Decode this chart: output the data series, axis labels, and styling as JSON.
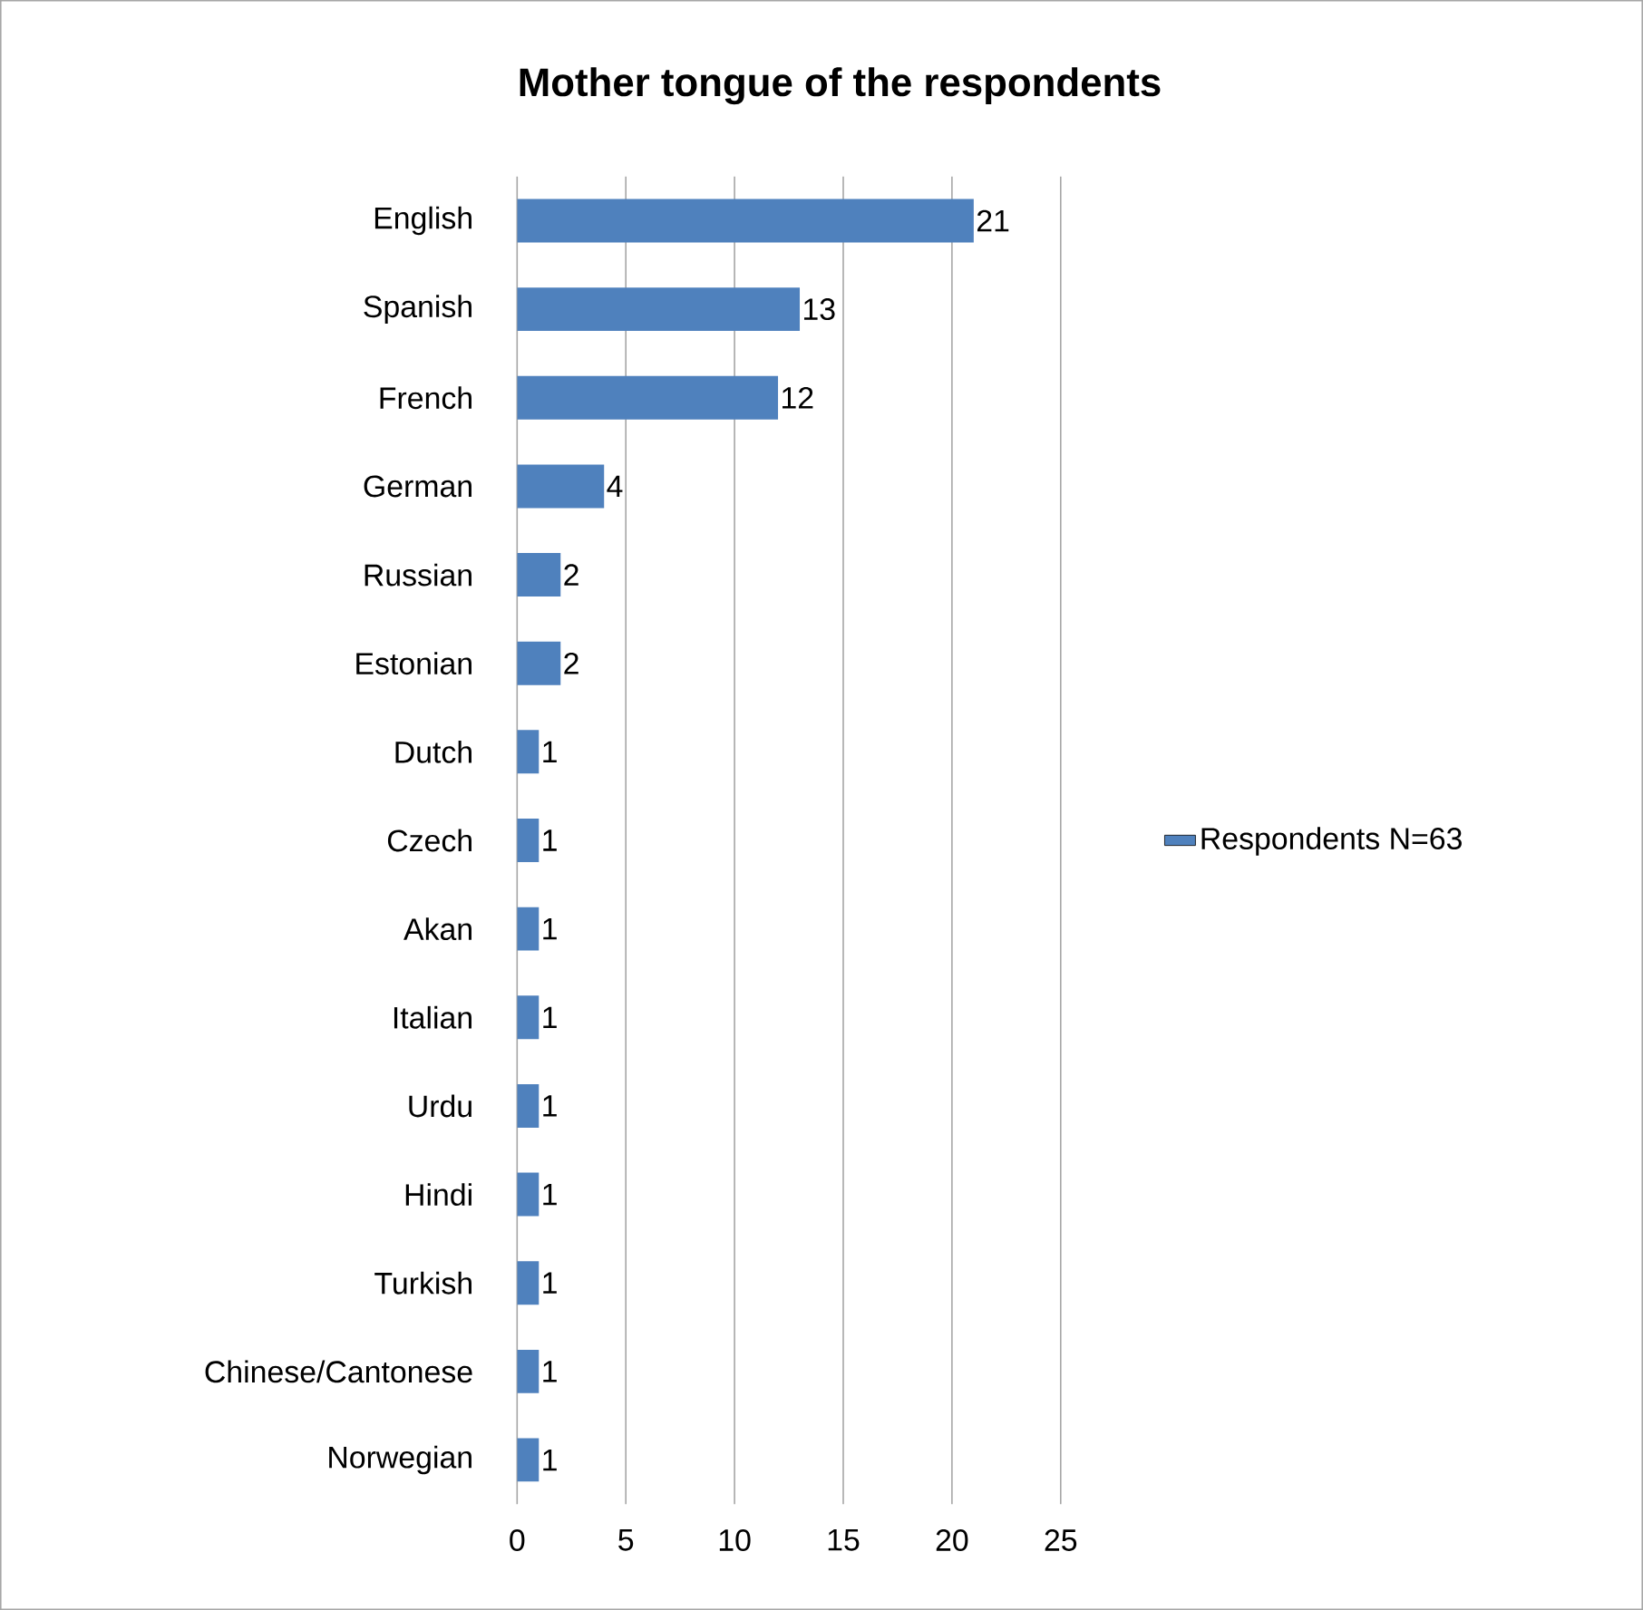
{
  "chart_data": {
    "type": "bar",
    "orientation": "horizontal",
    "title": "Mother tongue of the respondents",
    "categories": [
      "English",
      "Spanish",
      "French",
      "German",
      "Russian",
      "Estonian",
      "Dutch",
      "Czech",
      "Akan",
      "Italian",
      "Urdu",
      "Hindi",
      "Turkish",
      "Chinese/Cantonese",
      "Norwegian"
    ],
    "series": [
      {
        "name": "Respondents N=63",
        "color": "#4f81bd",
        "values": [
          21,
          13,
          12,
          4,
          2,
          2,
          1,
          1,
          1,
          1,
          1,
          1,
          1,
          1,
          1
        ]
      }
    ],
    "xlim": [
      0,
      25
    ],
    "xticks": [
      0,
      5,
      10,
      15,
      20,
      25
    ],
    "grid": "x",
    "legend": "right",
    "data_labels": true
  }
}
